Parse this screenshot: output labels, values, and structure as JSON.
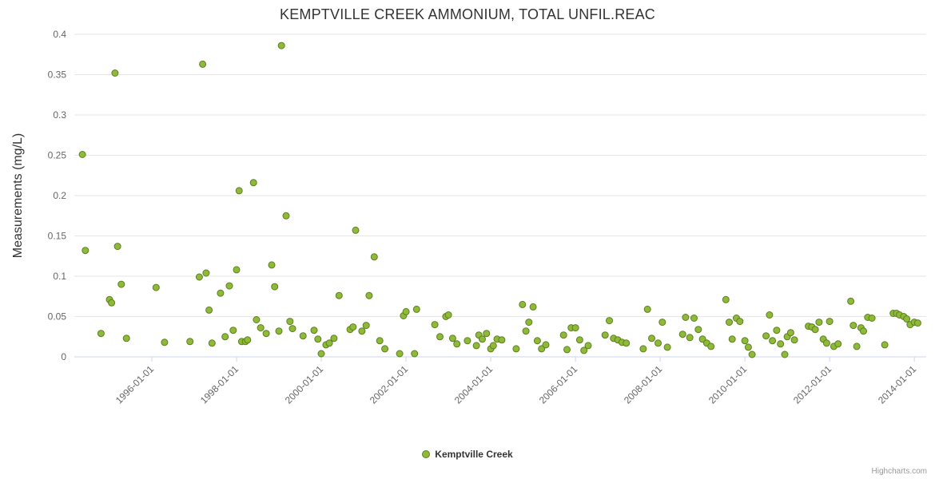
{
  "title": "KEMPTVILLE CREEK AMMONIUM, TOTAL UNFIL.REAC",
  "legend": {
    "series_label": "Kemptville Creek"
  },
  "credits": "Highcharts.com",
  "colors": {
    "marker_fill": "#8fba37",
    "marker_stroke": "#5d7f22",
    "grid": "#e6e6e6",
    "axis_line": "#ccd6eb",
    "axis_label": "#666666",
    "title": "#333333",
    "axis_title": "#333333"
  },
  "chart_data": {
    "type": "scatter",
    "title": "KEMPTVILLE CREEK AMMONIUM, TOTAL UNFIL.REAC",
    "xlabel": "",
    "ylabel": "Measurements (mg/L)",
    "ylim": [
      0,
      0.4
    ],
    "xlim": [
      1994.17,
      2014.28
    ],
    "grid": "horizontal",
    "legend_position": "bottom",
    "y_ticks": [
      {
        "v": 0,
        "label": "0"
      },
      {
        "v": 0.05,
        "label": "0.05"
      },
      {
        "v": 0.1,
        "label": "0.1"
      },
      {
        "v": 0.15,
        "label": "0.15"
      },
      {
        "v": 0.2,
        "label": "0.2"
      },
      {
        "v": 0.25,
        "label": "0.25"
      },
      {
        "v": 0.3,
        "label": "0.3"
      },
      {
        "v": 0.35,
        "label": "0.35"
      },
      {
        "v": 0.4,
        "label": "0.4"
      }
    ],
    "x_ticks": [
      {
        "v": 1996,
        "label": "1996-01-01"
      },
      {
        "v": 1998,
        "label": "1998-01-01"
      },
      {
        "v": 2000,
        "label": "2000-01-01"
      },
      {
        "v": 2002,
        "label": "2002-01-01"
      },
      {
        "v": 2004,
        "label": "2004-01-01"
      },
      {
        "v": 2006,
        "label": "2006-01-01"
      },
      {
        "v": 2008,
        "label": "2008-01-01"
      },
      {
        "v": 2010,
        "label": "2010-01-01"
      },
      {
        "v": 2012,
        "label": "2012-01-01"
      },
      {
        "v": 2014,
        "label": "2014-01-01"
      }
    ],
    "series": [
      {
        "name": "Kemptville Creek",
        "points": [
          [
            1994.36,
            0.251
          ],
          [
            1994.43,
            0.132
          ],
          [
            1994.8,
            0.029
          ],
          [
            1995.0,
            0.071
          ],
          [
            1995.05,
            0.067
          ],
          [
            1995.13,
            0.352
          ],
          [
            1995.19,
            0.137
          ],
          [
            1995.28,
            0.09
          ],
          [
            1995.4,
            0.023
          ],
          [
            1996.1,
            0.086
          ],
          [
            1996.3,
            0.018
          ],
          [
            1996.9,
            0.019
          ],
          [
            1997.12,
            0.099
          ],
          [
            1997.2,
            0.363
          ],
          [
            1997.28,
            0.104
          ],
          [
            1997.35,
            0.058
          ],
          [
            1997.42,
            0.017
          ],
          [
            1997.62,
            0.079
          ],
          [
            1997.73,
            0.025
          ],
          [
            1997.83,
            0.088
          ],
          [
            1997.92,
            0.033
          ],
          [
            1998.0,
            0.108
          ],
          [
            1998.06,
            0.206
          ],
          [
            1998.12,
            0.019
          ],
          [
            1998.21,
            0.019
          ],
          [
            1998.26,
            0.021
          ],
          [
            1998.4,
            0.216
          ],
          [
            1998.47,
            0.046
          ],
          [
            1998.57,
            0.036
          ],
          [
            1998.7,
            0.029
          ],
          [
            1998.83,
            0.114
          ],
          [
            1998.9,
            0.087
          ],
          [
            1999.0,
            0.032
          ],
          [
            1999.06,
            0.386
          ],
          [
            1999.17,
            0.175
          ],
          [
            1999.26,
            0.044
          ],
          [
            1999.32,
            0.035
          ],
          [
            1999.57,
            0.026
          ],
          [
            1999.83,
            0.033
          ],
          [
            1999.92,
            0.022
          ],
          [
            2000.0,
            0.004
          ],
          [
            2000.11,
            0.015
          ],
          [
            2000.19,
            0.017
          ],
          [
            2000.3,
            0.023
          ],
          [
            2000.42,
            0.076
          ],
          [
            2000.68,
            0.034
          ],
          [
            2000.75,
            0.037
          ],
          [
            2000.81,
            0.157
          ],
          [
            2000.96,
            0.032
          ],
          [
            2001.06,
            0.039
          ],
          [
            2001.13,
            0.076
          ],
          [
            2001.25,
            0.124
          ],
          [
            2001.38,
            0.02
          ],
          [
            2001.5,
            0.01
          ],
          [
            2001.85,
            0.004
          ],
          [
            2001.94,
            0.051
          ],
          [
            2002.0,
            0.056
          ],
          [
            2002.2,
            0.004
          ],
          [
            2002.25,
            0.059
          ],
          [
            2002.68,
            0.04
          ],
          [
            2002.8,
            0.025
          ],
          [
            2002.94,
            0.05
          ],
          [
            2003.0,
            0.052
          ],
          [
            2003.1,
            0.023
          ],
          [
            2003.2,
            0.016
          ],
          [
            2003.45,
            0.02
          ],
          [
            2003.66,
            0.014
          ],
          [
            2003.72,
            0.027
          ],
          [
            2003.8,
            0.022
          ],
          [
            2003.9,
            0.029
          ],
          [
            2004.0,
            0.01
          ],
          [
            2004.06,
            0.014
          ],
          [
            2004.15,
            0.022
          ],
          [
            2004.26,
            0.021
          ],
          [
            2004.6,
            0.01
          ],
          [
            2004.75,
            0.065
          ],
          [
            2004.83,
            0.032
          ],
          [
            2004.9,
            0.043
          ],
          [
            2005.0,
            0.062
          ],
          [
            2005.1,
            0.02
          ],
          [
            2005.2,
            0.01
          ],
          [
            2005.3,
            0.015
          ],
          [
            2005.72,
            0.027
          ],
          [
            2005.8,
            0.009
          ],
          [
            2005.9,
            0.036
          ],
          [
            2006.0,
            0.036
          ],
          [
            2006.1,
            0.021
          ],
          [
            2006.2,
            0.008
          ],
          [
            2006.3,
            0.014
          ],
          [
            2006.7,
            0.027
          ],
          [
            2006.8,
            0.045
          ],
          [
            2006.9,
            0.023
          ],
          [
            2007.0,
            0.021
          ],
          [
            2007.1,
            0.018
          ],
          [
            2007.2,
            0.017
          ],
          [
            2007.6,
            0.01
          ],
          [
            2007.7,
            0.059
          ],
          [
            2007.8,
            0.023
          ],
          [
            2007.95,
            0.017
          ],
          [
            2008.05,
            0.043
          ],
          [
            2008.17,
            0.012
          ],
          [
            2008.53,
            0.028
          ],
          [
            2008.6,
            0.049
          ],
          [
            2008.7,
            0.024
          ],
          [
            2008.8,
            0.048
          ],
          [
            2008.9,
            0.034
          ],
          [
            2009.0,
            0.022
          ],
          [
            2009.1,
            0.017
          ],
          [
            2009.2,
            0.013
          ],
          [
            2009.55,
            0.071
          ],
          [
            2009.63,
            0.043
          ],
          [
            2009.7,
            0.022
          ],
          [
            2009.8,
            0.048
          ],
          [
            2009.88,
            0.044
          ],
          [
            2010.0,
            0.02
          ],
          [
            2010.08,
            0.012
          ],
          [
            2010.17,
            0.003
          ],
          [
            2010.5,
            0.026
          ],
          [
            2010.58,
            0.052
          ],
          [
            2010.65,
            0.02
          ],
          [
            2010.75,
            0.033
          ],
          [
            2010.84,
            0.016
          ],
          [
            2010.94,
            0.003
          ],
          [
            2011.0,
            0.025
          ],
          [
            2011.08,
            0.03
          ],
          [
            2011.17,
            0.021
          ],
          [
            2011.5,
            0.038
          ],
          [
            2011.58,
            0.037
          ],
          [
            2011.66,
            0.034
          ],
          [
            2011.75,
            0.043
          ],
          [
            2011.85,
            0.022
          ],
          [
            2011.93,
            0.017
          ],
          [
            2012.0,
            0.044
          ],
          [
            2012.1,
            0.013
          ],
          [
            2012.2,
            0.016
          ],
          [
            2012.5,
            0.069
          ],
          [
            2012.56,
            0.039
          ],
          [
            2012.64,
            0.013
          ],
          [
            2012.74,
            0.036
          ],
          [
            2012.8,
            0.032
          ],
          [
            2012.9,
            0.049
          ],
          [
            2013.0,
            0.048
          ],
          [
            2013.3,
            0.015
          ],
          [
            2013.5,
            0.054
          ],
          [
            2013.58,
            0.054
          ],
          [
            2013.65,
            0.052
          ],
          [
            2013.75,
            0.05
          ],
          [
            2013.82,
            0.047
          ],
          [
            2013.9,
            0.04
          ],
          [
            2014.0,
            0.043
          ],
          [
            2014.08,
            0.042
          ]
        ]
      }
    ]
  }
}
